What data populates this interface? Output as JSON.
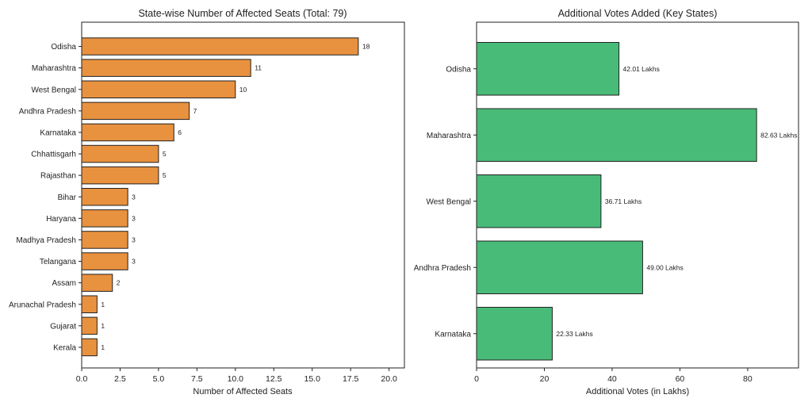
{
  "chart_data": [
    {
      "type": "bar",
      "orientation": "horizontal",
      "title": "State-wise Number of Affected Seats (Total: 79)",
      "xlabel": "Number of Affected Seats",
      "ylabel": "",
      "categories": [
        "Odisha",
        "Maharashtra",
        "West Bengal",
        "Andhra Pradesh",
        "Karnataka",
        "Chhattisgarh",
        "Rajasthan",
        "Bihar",
        "Haryana",
        "Madhya Pradesh",
        "Telangana",
        "Assam",
        "Arunachal Pradesh",
        "Gujarat",
        "Kerala"
      ],
      "values": [
        18,
        11,
        10,
        7,
        6,
        5,
        5,
        3,
        3,
        3,
        3,
        2,
        1,
        1,
        1
      ],
      "value_labels": [
        "18",
        "11",
        "10",
        "7",
        "6",
        "5",
        "5",
        "3",
        "3",
        "3",
        "3",
        "2",
        "1",
        "1",
        "1"
      ],
      "xlim": [
        0,
        21
      ],
      "xticks": [
        "0.0",
        "2.5",
        "5.0",
        "7.5",
        "10.0",
        "12.5",
        "15.0",
        "17.5",
        "20.0"
      ],
      "xtick_values": [
        0,
        2.5,
        5,
        7.5,
        10,
        12.5,
        15,
        17.5,
        20
      ],
      "bar_color": "#E8913F",
      "edge_color": "#222222",
      "grid": false
    },
    {
      "type": "bar",
      "orientation": "horizontal",
      "title": "Additional Votes Added (Key States)",
      "xlabel": "Additional Votes (in Lakhs)",
      "ylabel": "",
      "categories": [
        "Odisha",
        "Maharashtra",
        "West Bengal",
        "Andhra Pradesh",
        "Karnataka"
      ],
      "values": [
        42.01,
        82.63,
        36.71,
        49.0,
        22.33
      ],
      "value_labels": [
        "42.01 Lakhs",
        "82.63 Lakhs",
        "36.71 Lakhs",
        "49.00 Lakhs",
        "22.33 Lakhs"
      ],
      "xlim": [
        0,
        95
      ],
      "xticks": [
        "0",
        "20",
        "40",
        "60",
        "80"
      ],
      "xtick_values": [
        0,
        20,
        40,
        60,
        80
      ],
      "bar_color": "#48BB78",
      "edge_color": "#222222",
      "grid": false
    }
  ]
}
